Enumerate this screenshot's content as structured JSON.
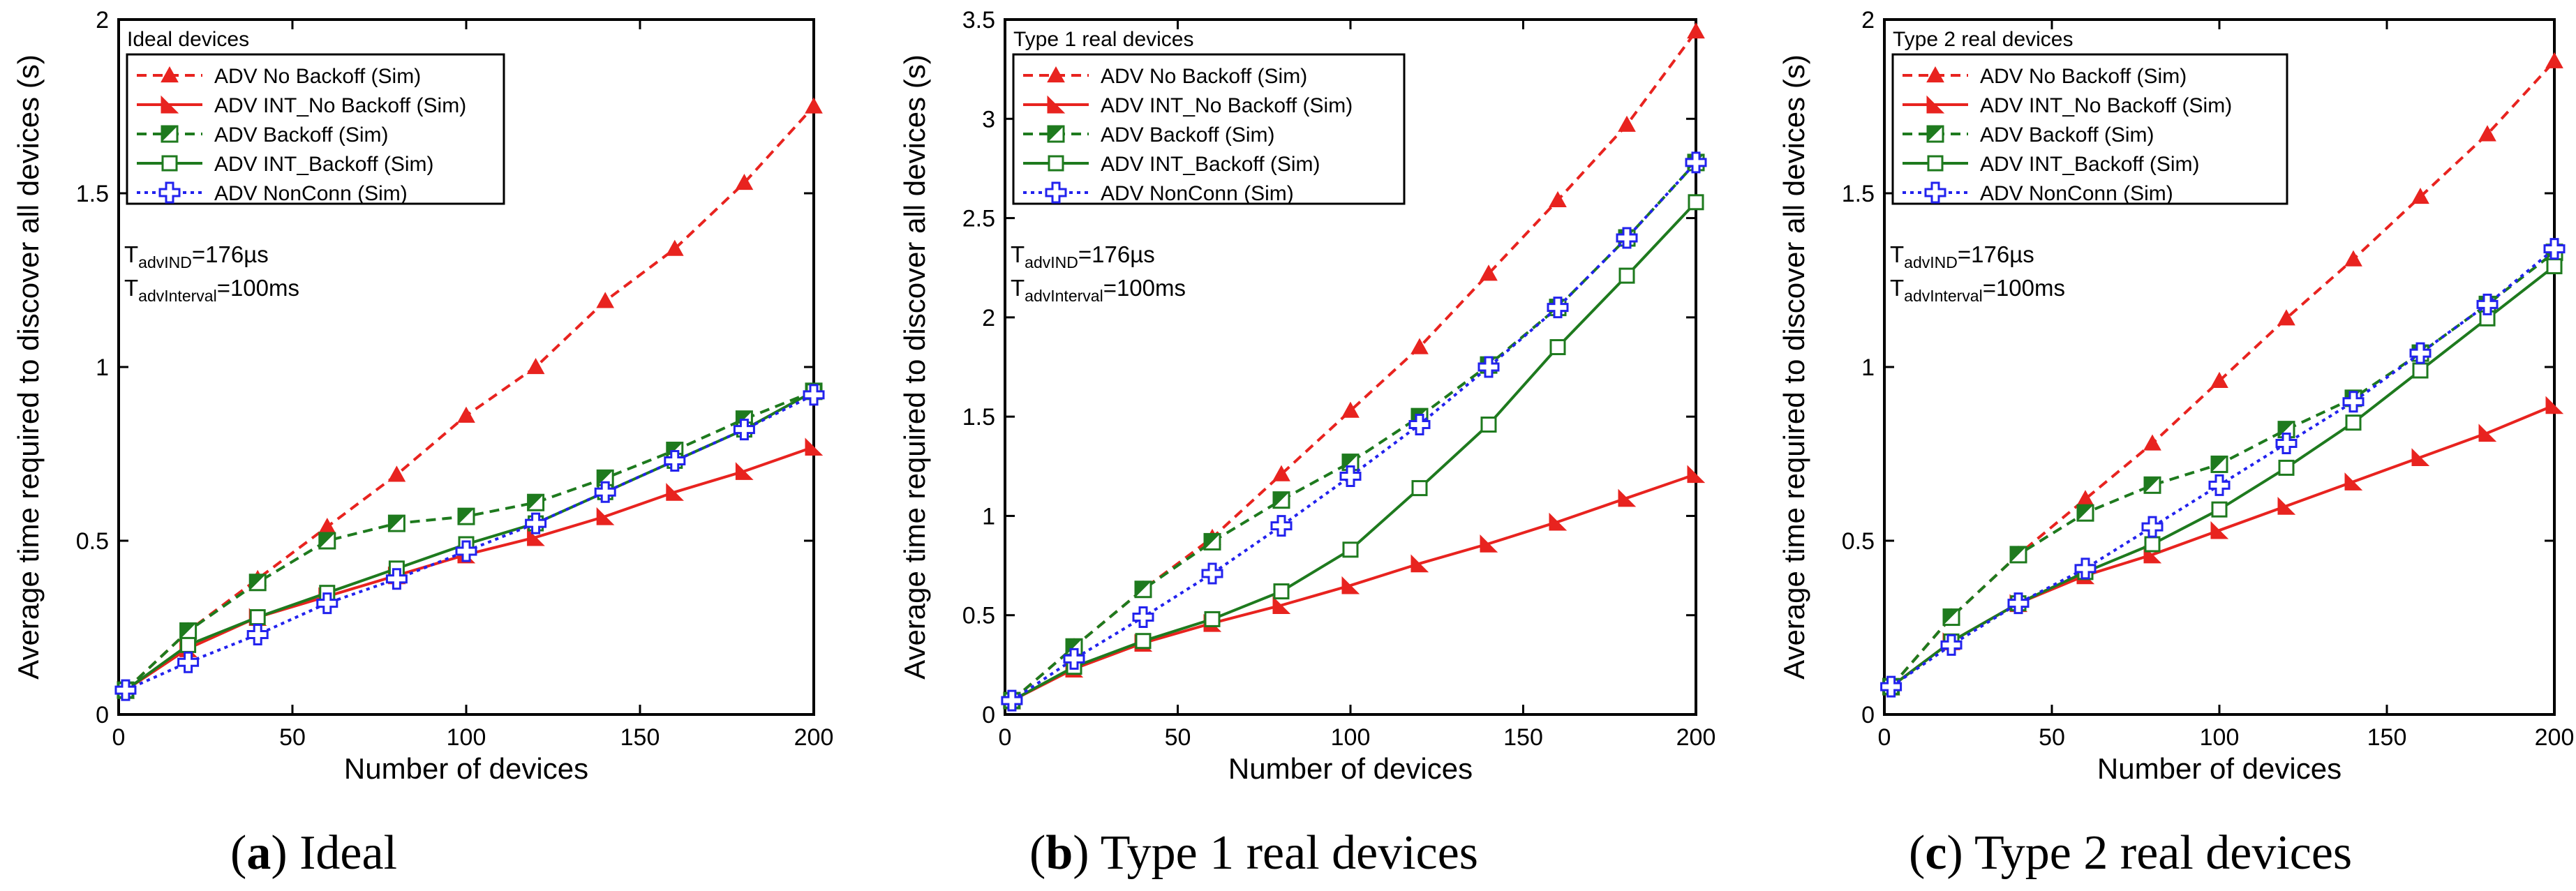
{
  "chart_data": [
    {
      "type": "line",
      "panel_title": "Ideal devices",
      "caption_letter": "a",
      "caption_text": " Ideal",
      "xlabel": "Number of devices",
      "ylabel": "Average time required to discover all devices (s)",
      "xlim": [
        0,
        200
      ],
      "ylim": [
        0,
        2
      ],
      "xticks": [
        0,
        50,
        100,
        150,
        200
      ],
      "yticks": [
        0,
        0.5,
        1,
        1.5,
        2
      ],
      "ytick_labels": [
        "0",
        "0.5",
        "1",
        "1.5",
        "2"
      ],
      "annotation": {
        "t_adv_ind": "176µs",
        "t_adv_interval": "=100ms"
      },
      "series": [
        {
          "name": "ADV No Backoff  (Sim)",
          "x": [
            2,
            20,
            40,
            60,
            80,
            100,
            120,
            140,
            160,
            180,
            200
          ],
          "values": [
            0.07,
            0.24,
            0.39,
            0.54,
            0.69,
            0.86,
            1.0,
            1.19,
            1.34,
            1.53,
            1.75
          ]
        },
        {
          "name": "ADV INT_No Backoff  (Sim)",
          "x": [
            2,
            20,
            40,
            60,
            80,
            100,
            120,
            140,
            160,
            180,
            200
          ],
          "values": [
            0.07,
            0.19,
            0.28,
            0.34,
            0.4,
            0.46,
            0.51,
            0.57,
            0.64,
            0.7,
            0.77
          ]
        },
        {
          "name": "ADV Backoff (Sim)",
          "x": [
            2,
            20,
            40,
            60,
            80,
            100,
            120,
            140,
            160,
            180,
            200
          ],
          "values": [
            0.07,
            0.24,
            0.38,
            0.5,
            0.55,
            0.57,
            0.61,
            0.68,
            0.76,
            0.85,
            0.93
          ]
        },
        {
          "name": "ADV INT_Backoff (Sim)",
          "x": [
            2,
            20,
            40,
            60,
            80,
            100,
            120,
            140,
            160,
            180,
            200
          ],
          "values": [
            0.07,
            0.2,
            0.28,
            0.35,
            0.42,
            0.49,
            0.55,
            0.64,
            0.73,
            0.82,
            0.93
          ]
        },
        {
          "name": "ADV  NonConn (Sim)",
          "x": [
            2,
            20,
            40,
            60,
            80,
            100,
            120,
            140,
            160,
            180,
            200
          ],
          "values": [
            0.07,
            0.15,
            0.23,
            0.32,
            0.39,
            0.47,
            0.55,
            0.64,
            0.73,
            0.82,
            0.92
          ]
        }
      ]
    },
    {
      "type": "line",
      "panel_title": "Type 1 real devices",
      "caption_letter": "b",
      "caption_text": " Type 1 real devices",
      "xlabel": "Number of devices",
      "ylabel": "Average time required to discover all devices (s)",
      "xlim": [
        0,
        200
      ],
      "ylim": [
        0,
        3.5
      ],
      "xticks": [
        0,
        50,
        100,
        150,
        200
      ],
      "yticks": [
        0,
        0.5,
        1,
        1.5,
        2,
        2.5,
        3,
        3.5
      ],
      "ytick_labels": [
        "0",
        "0.5",
        "1",
        "1.5",
        "2",
        "2.5",
        "3",
        "3.5"
      ],
      "annotation": {
        "t_adv_ind": "176µs",
        "t_adv_interval": "=100ms"
      },
      "series": [
        {
          "name": "ADV No Backoff  (Sim)",
          "x": [
            2,
            20,
            40,
            60,
            80,
            100,
            120,
            140,
            160,
            180,
            200
          ],
          "values": [
            0.07,
            0.34,
            0.63,
            0.89,
            1.21,
            1.53,
            1.85,
            2.22,
            2.59,
            2.97,
            3.44
          ]
        },
        {
          "name": "ADV INT_No Backoff  (Sim)",
          "x": [
            2,
            20,
            40,
            60,
            80,
            100,
            120,
            140,
            160,
            180,
            200
          ],
          "values": [
            0.07,
            0.23,
            0.36,
            0.46,
            0.55,
            0.65,
            0.76,
            0.86,
            0.97,
            1.09,
            1.21
          ]
        },
        {
          "name": "ADV Backoff (Sim)",
          "x": [
            2,
            20,
            40,
            60,
            80,
            100,
            120,
            140,
            160,
            180,
            200
          ],
          "values": [
            0.07,
            0.34,
            0.63,
            0.87,
            1.08,
            1.27,
            1.5,
            1.76,
            2.05,
            2.4,
            2.78
          ]
        },
        {
          "name": "ADV INT_Backoff (Sim)",
          "x": [
            2,
            20,
            40,
            60,
            80,
            100,
            120,
            140,
            160,
            180,
            200
          ],
          "values": [
            0.07,
            0.24,
            0.37,
            0.48,
            0.62,
            0.83,
            1.14,
            1.46,
            1.85,
            2.21,
            2.58
          ]
        },
        {
          "name": "ADV  NonConn (Sim)",
          "x": [
            2,
            20,
            40,
            60,
            80,
            100,
            120,
            140,
            160,
            180,
            200
          ],
          "values": [
            0.07,
            0.28,
            0.49,
            0.71,
            0.95,
            1.2,
            1.46,
            1.75,
            2.05,
            2.4,
            2.78
          ]
        }
      ]
    },
    {
      "type": "line",
      "panel_title": "Type 2 real devices",
      "caption_letter": "c",
      "caption_text": " Type 2 real devices",
      "xlabel": "Number of devices",
      "ylabel": "Average time required to discover all devices (s)",
      "xlim": [
        0,
        200
      ],
      "ylim": [
        0,
        2
      ],
      "xticks": [
        0,
        50,
        100,
        150,
        200
      ],
      "yticks": [
        0,
        0.5,
        1,
        1.5,
        2
      ],
      "ytick_labels": [
        "0",
        "0.5",
        "1",
        "1.5",
        "2"
      ],
      "annotation": {
        "t_adv_ind": "176µs",
        "t_adv_interval": "=100ms"
      },
      "series": [
        {
          "name": "ADV No Backoff  (Sim)",
          "x": [
            2,
            20,
            40,
            60,
            80,
            100,
            120,
            140,
            160,
            180,
            200
          ],
          "values": [
            0.08,
            0.28,
            0.46,
            0.62,
            0.78,
            0.96,
            1.14,
            1.31,
            1.49,
            1.67,
            1.88
          ]
        },
        {
          "name": "ADV INT_No Backoff  (Sim)",
          "x": [
            2,
            20,
            40,
            60,
            80,
            100,
            120,
            140,
            160,
            180,
            200
          ],
          "values": [
            0.08,
            0.21,
            0.32,
            0.4,
            0.46,
            0.53,
            0.6,
            0.67,
            0.74,
            0.81,
            0.89
          ]
        },
        {
          "name": "ADV Backoff (Sim)",
          "x": [
            2,
            20,
            40,
            60,
            80,
            100,
            120,
            140,
            160,
            180,
            200
          ],
          "values": [
            0.08,
            0.28,
            0.46,
            0.58,
            0.66,
            0.72,
            0.82,
            0.91,
            1.04,
            1.18,
            1.33
          ]
        },
        {
          "name": "ADV INT_Backoff (Sim)",
          "x": [
            2,
            20,
            40,
            60,
            80,
            100,
            120,
            140,
            160,
            180,
            200
          ],
          "values": [
            0.08,
            0.21,
            0.32,
            0.41,
            0.49,
            0.59,
            0.71,
            0.84,
            0.99,
            1.14,
            1.29
          ]
        },
        {
          "name": "ADV  NonConn (Sim)",
          "x": [
            2,
            20,
            40,
            60,
            80,
            100,
            120,
            140,
            160,
            180,
            200
          ],
          "values": [
            0.08,
            0.2,
            0.32,
            0.42,
            0.54,
            0.66,
            0.78,
            0.9,
            1.04,
            1.18,
            1.34
          ]
        }
      ]
    }
  ],
  "annotation_labels": {
    "t_prefix": "T",
    "adv_ind_sub": "advIND",
    "adv_interval_sub": "advInterval"
  },
  "series_styles": [
    {
      "color": "#e8231f",
      "dash": "dashed",
      "marker": "triangle"
    },
    {
      "color": "#e8231f",
      "dash": "solid",
      "marker": "flag"
    },
    {
      "color": "#1e7a1e",
      "dash": "dashed",
      "marker": "half-square"
    },
    {
      "color": "#1e7a1e",
      "dash": "solid",
      "marker": "open-square"
    },
    {
      "color": "#2222ee",
      "dash": "dotted",
      "marker": "open-cross"
    }
  ]
}
